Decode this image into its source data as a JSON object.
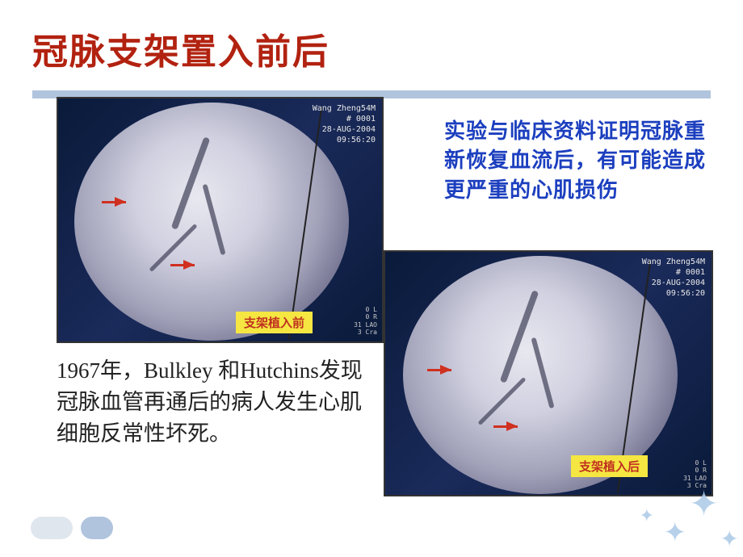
{
  "colors": {
    "title": "#b22210",
    "accent_bar": "#b0c4de",
    "note_blue": "#1c3fbf",
    "arrow": "#d03020",
    "caption_bg": "#f5e642",
    "caption_text": "#c03020",
    "body_text": "#222222",
    "star": "#b0cde8",
    "scan_bg_dark": "#0a1a3a"
  },
  "typography": {
    "title_fontsize": 44,
    "note_fontsize": 26,
    "body_fontsize": 27,
    "caption_fontsize": 15
  },
  "title": "冠脉支架置入前后",
  "blue_note": "实验与临床资料证明冠脉重新恢复血流后，有可能造成更严重的心肌损伤",
  "body_note": "1967年，Bulkley 和Hutchins发现冠脉血管再通后的病人发生心肌细胞反常性坏死。",
  "left_image": {
    "caption": "支架植入前",
    "meta_top": "Wang Zheng54M\n# 0001\n28-AUG-2004\n09:56:20",
    "meta_bottom": "0 L\n0 R\n31 LAO\n3 Cra"
  },
  "right_image": {
    "caption": "支架植入后",
    "meta_top": "Wang Zheng54M\n# 0001\n28-AUG-2004\n09:56:20",
    "meta_bottom": "0 L\n0 R\n31 LAO\n3 Cra"
  }
}
